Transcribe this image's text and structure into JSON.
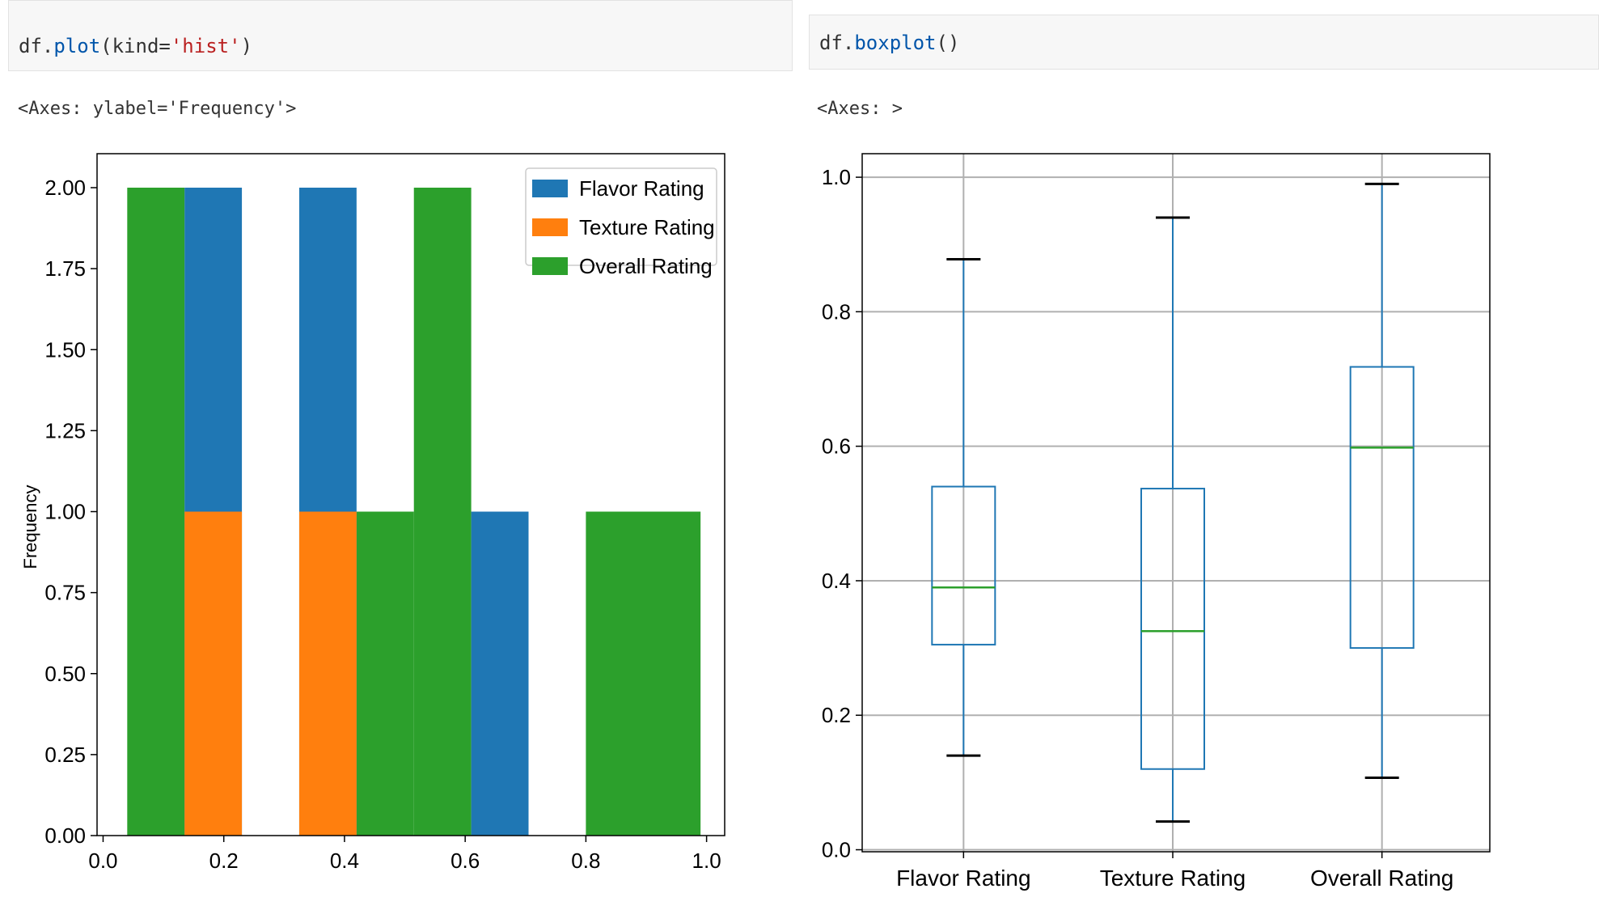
{
  "cell_left": {
    "code_obj": "df",
    "code_dot": ".",
    "code_fn": "plot",
    "code_open": "(kind=",
    "code_str": "'hist'",
    "code_close": ")",
    "output": "<Axes: ylabel='Frequency'>"
  },
  "cell_right": {
    "code_obj": "df",
    "code_dot": ".",
    "code_fn": "boxplot",
    "code_close": "()",
    "output": "<Axes: >"
  },
  "chart_data": [
    {
      "type": "bar",
      "subtype": "histogram",
      "title": "",
      "xlabel": "",
      "ylabel": "Frequency",
      "xlim": [
        0.0,
        1.0
      ],
      "ylim": [
        0.0,
        2.0
      ],
      "x_ticks": [
        "0.0",
        "0.2",
        "0.4",
        "0.6",
        "0.8",
        "1.0"
      ],
      "y_ticks": [
        "0.00",
        "0.25",
        "0.50",
        "0.75",
        "1.00",
        "1.25",
        "1.50",
        "1.75",
        "2.00"
      ],
      "legend_position": "top-right",
      "grid": false,
      "series": [
        {
          "name": "Flavor Rating",
          "color": "#1f77b4",
          "bins": [
            {
              "x0": 0.04,
              "x1": 0.135,
              "count": 0
            },
            {
              "x0": 0.135,
              "x1": 0.23,
              "count": 2
            },
            {
              "x0": 0.325,
              "x1": 0.42,
              "count": 2
            },
            {
              "x0": 0.61,
              "x1": 0.705,
              "count": 1
            }
          ]
        },
        {
          "name": "Texture Rating",
          "color": "#ff7f0e",
          "bins": [
            {
              "x0": 0.135,
              "x1": 0.23,
              "count": 1
            },
            {
              "x0": 0.325,
              "x1": 0.42,
              "count": 1
            }
          ]
        },
        {
          "name": "Overall Rating",
          "color": "#2ca02c",
          "bins": [
            {
              "x0": 0.04,
              "x1": 0.135,
              "count": 2
            },
            {
              "x0": 0.42,
              "x1": 0.515,
              "count": 1
            },
            {
              "x0": 0.515,
              "x1": 0.61,
              "count": 2
            },
            {
              "x0": 0.8,
              "x1": 0.99,
              "count": 1
            }
          ]
        }
      ]
    },
    {
      "type": "box",
      "title": "",
      "xlabel": "",
      "ylabel": "",
      "ylim": [
        0.0,
        1.0
      ],
      "y_ticks": [
        "0.0",
        "0.2",
        "0.4",
        "0.6",
        "0.8",
        "1.0"
      ],
      "grid": true,
      "box_color": "#1f77b4",
      "median_color": "#2ca02c",
      "series": [
        {
          "name": "Flavor Rating",
          "whisker_low": 0.14,
          "q1": 0.305,
          "median": 0.39,
          "q3": 0.54,
          "whisker_high": 0.878
        },
        {
          "name": "Texture Rating",
          "whisker_low": 0.042,
          "q1": 0.12,
          "median": 0.325,
          "q3": 0.537,
          "whisker_high": 0.94
        },
        {
          "name": "Overall Rating",
          "whisker_low": 0.107,
          "q1": 0.3,
          "median": 0.598,
          "q3": 0.718,
          "whisker_high": 0.99
        }
      ]
    }
  ]
}
